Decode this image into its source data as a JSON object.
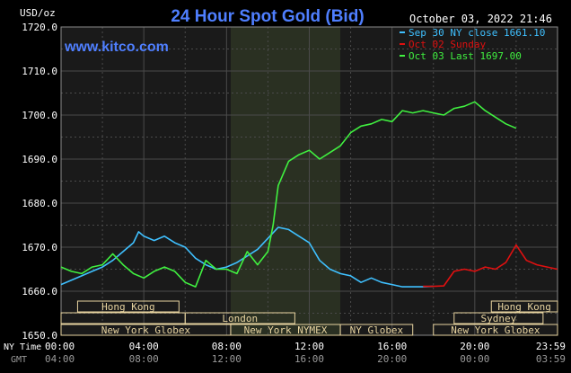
{
  "header": {
    "unit": "USD/oz",
    "title": "24 Hour Spot Gold (Bid)",
    "datetime": "October 03, 2022 21:46",
    "site": "www.kitco.com"
  },
  "legend": [
    {
      "label": "Sep 30 NY close 1661.10",
      "color": "#3fc0ff"
    },
    {
      "label": "Oct 02 Sunday",
      "color": "#e01010"
    },
    {
      "label": "Oct 03 Last 1697.00",
      "color": "#40f040"
    }
  ],
  "axis": {
    "ny_time_label": "NY Time",
    "gmt_label": "GMT",
    "ny_ticks": [
      "00:00",
      "04:00",
      "08:00",
      "12:00",
      "16:00",
      "20:00",
      "23:59"
    ],
    "gmt_ticks": [
      "04:00",
      "08:00",
      "12:00",
      "16:00",
      "20:00",
      "00:00",
      "03:59"
    ],
    "y_ticks": [
      "1720.0",
      "1710.0",
      "1700.0",
      "1690.0",
      "1680.0",
      "1670.0",
      "1660.0",
      "1650.0"
    ]
  },
  "sessions": {
    "hong_kong_1": "Hong Kong",
    "new_york_globex_1": "New York Globex",
    "london": "London",
    "new_york_nymex": "New York NYMEX",
    "ny_globex": "NY Globex",
    "hong_kong_2": "Hong Kong",
    "sydney": "Sydney",
    "new_york_globex_2": "New York Globex"
  },
  "colors": {
    "background": "#000000",
    "plot_background": "#1a1a1a",
    "nymex_shade": "#2a3022",
    "grid": "#4a4a4a",
    "title": "#4f7fff",
    "site": "#4f7fff",
    "axis_text": "#ffffff",
    "gmt_text": "#9a9a9a",
    "session_box": "#e8d4a0"
  },
  "chart_data": {
    "type": "line",
    "title": "24 Hour Spot Gold (Bid)",
    "ylabel": "USD/oz",
    "xlabel": "NY Time",
    "ylim": [
      1650,
      1720
    ],
    "xlim": [
      "00:00",
      "23:59"
    ],
    "grid": true,
    "legend_position": "top-right",
    "series": [
      {
        "name": "Sep 30 NY close 1661.10",
        "x_hours": [
          0,
          0.5,
          1,
          1.5,
          2,
          2.5,
          3,
          3.5,
          3.75,
          4,
          4.5,
          5,
          5.5,
          6,
          6.5,
          7,
          7.5,
          8,
          8.5,
          9,
          9.5,
          10,
          10.5,
          11,
          11.5,
          12,
          12.5,
          13,
          13.5,
          14,
          14.5,
          15,
          15.5,
          16,
          16.5,
          17,
          17.5,
          18
        ],
        "values": [
          1661.5,
          1662.5,
          1663.5,
          1664.5,
          1665.5,
          1667.0,
          1669.0,
          1671.0,
          1673.5,
          1672.5,
          1671.5,
          1672.5,
          1671.0,
          1670.0,
          1667.5,
          1666.0,
          1665.0,
          1665.5,
          1666.5,
          1668.0,
          1669.5,
          1672.0,
          1674.5,
          1674.0,
          1672.5,
          1671.0,
          1667.0,
          1665.0,
          1664.0,
          1663.5,
          1662.0,
          1663.0,
          1662.0,
          1661.5,
          1661.0,
          1661.0,
          1661.0,
          1661.1
        ]
      },
      {
        "name": "Oct 02 Sunday",
        "x_hours": [
          17.5,
          18,
          18.5,
          19,
          19.5,
          20,
          20.5,
          21,
          21.5,
          22,
          22.5,
          23,
          23.5,
          23.99
        ],
        "values": [
          1661.1,
          1661.1,
          1661.2,
          1664.5,
          1665.0,
          1664.5,
          1665.5,
          1665.0,
          1666.5,
          1670.5,
          1667.0,
          1666.0,
          1665.5,
          1665.0
        ]
      },
      {
        "name": "Oct 03 Last 1697.00",
        "x_hours": [
          0,
          0.5,
          1,
          1.5,
          2,
          2.5,
          3,
          3.5,
          4,
          4.5,
          5,
          5.5,
          6,
          6.5,
          7,
          7.5,
          8,
          8.5,
          9,
          9.5,
          10,
          10.25,
          10.5,
          11,
          11.5,
          12,
          12.5,
          13,
          13.5,
          14,
          14.5,
          15,
          15.5,
          16,
          16.5,
          17,
          17.5,
          18,
          18.5,
          19,
          19.5,
          20,
          20.5,
          21,
          21.5,
          22
        ],
        "values": [
          1665.5,
          1664.5,
          1664.0,
          1665.5,
          1666.0,
          1668.5,
          1666.0,
          1664.0,
          1663.0,
          1664.5,
          1665.5,
          1664.5,
          1662.0,
          1661.0,
          1667.0,
          1665.0,
          1665.0,
          1664.0,
          1669.0,
          1666.0,
          1669.0,
          1675.0,
          1684.0,
          1689.5,
          1691.0,
          1692.0,
          1690.0,
          1691.5,
          1693.0,
          1696.0,
          1697.5,
          1698.0,
          1699.0,
          1698.5,
          1701.0,
          1700.5,
          1701.0,
          1700.5,
          1700.0,
          1701.5,
          1702.0,
          1703.0,
          1701.0,
          1699.5,
          1698.0,
          1697.0
        ]
      }
    ]
  }
}
